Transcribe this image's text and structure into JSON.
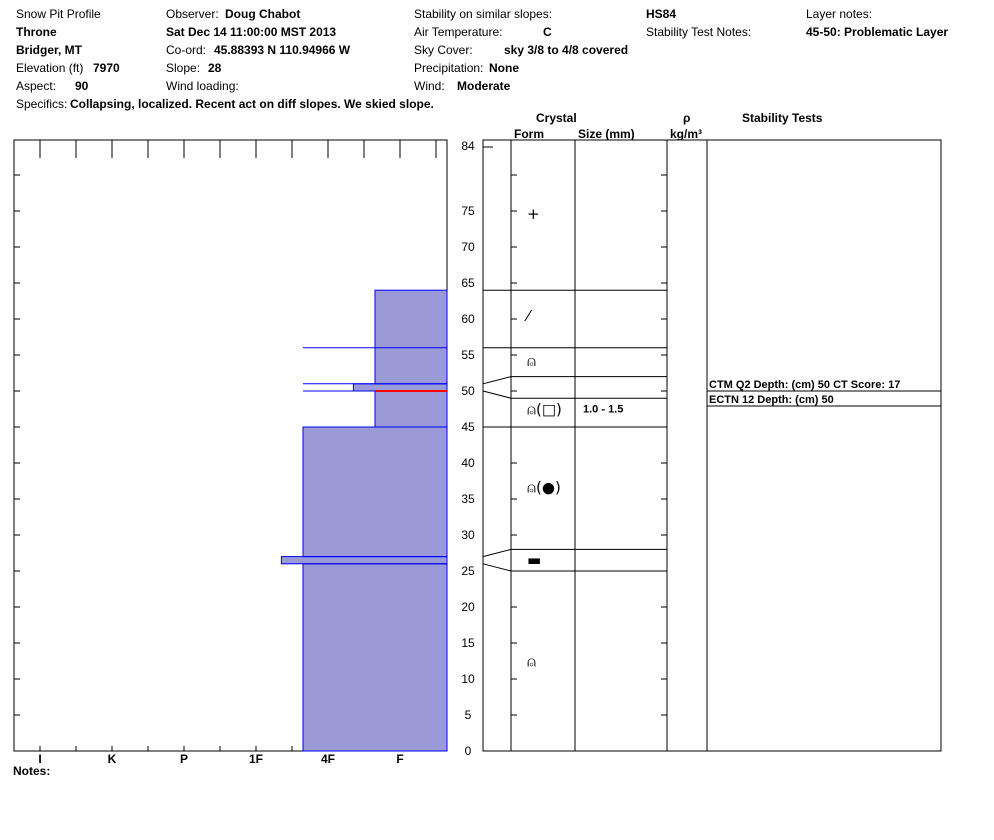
{
  "header": {
    "title": "Snow Pit Profile",
    "location": "Throne",
    "region": "Bridger, MT",
    "elevation_label": "Elevation (ft)",
    "elevation": "7970",
    "aspect_label": "Aspect:",
    "aspect": "90",
    "specifics_label": "Specifics:",
    "specifics": "Collapsing, localized. Recent act on diff slopes. We skied slope.",
    "observer_label": "Observer:",
    "observer": "Doug Chabot",
    "datetime": "Sat Dec 14 11:00:00 MST 2013",
    "coord_label": "Co-ord:",
    "coord": "45.88393 N 110.94966 W",
    "slope_label": "Slope:",
    "slope": "28",
    "wind_loading_label": "Wind loading:",
    "stability_label": "Stability on similar slopes:",
    "air_temp_label": "Air Temperature:",
    "air_temp": "C",
    "sky_label": "Sky Cover:",
    "sky": "sky 3/8 to 4/8 covered",
    "precip_label": "Precipitation:",
    "precip": "None",
    "wind_label": "Wind:",
    "wind": "Moderate",
    "hs": "HS84",
    "stability_notes_label": "Stability Test Notes:",
    "layer_notes_label": "Layer notes:",
    "layer_notes": "45-50: Problematic Layer"
  },
  "columns": {
    "crystal": "Crystal",
    "form": "Form",
    "size": "Size (mm)",
    "rho": "ρ",
    "density_unit": "kg/m³",
    "stability_tests": "Stability Tests"
  },
  "notes_label": "Notes:",
  "chart_data": {
    "type": "snow-profile",
    "hardness_scale": [
      "I",
      "K",
      "P",
      "1F",
      "4F",
      "F"
    ],
    "depth_axis": {
      "range": [
        0,
        84
      ],
      "ticks": [
        0,
        5,
        10,
        15,
        20,
        25,
        30,
        35,
        40,
        45,
        50,
        55,
        60,
        65,
        70,
        75,
        84
      ]
    },
    "hardness_profile": [
      {
        "from": 0,
        "to": 26,
        "hardness": 3
      },
      {
        "from": 26,
        "to": 27,
        "hardness": 2.7
      },
      {
        "from": 27,
        "to": 45,
        "hardness": 3
      },
      {
        "from": 45,
        "to": 50,
        "hardness": 4
      },
      {
        "from": 50,
        "to": 51,
        "hardness": 3.7
      },
      {
        "from": 51,
        "to": 64,
        "hardness": 4
      },
      {
        "from": 64,
        "to": 84,
        "hardness": 5
      }
    ],
    "layer_lines": [
      26,
      27,
      50,
      51,
      56
    ],
    "problem_layer": 50,
    "crystal_boundaries": [
      {
        "right": 25,
        "left": 26
      },
      {
        "right": 28,
        "left": 27
      },
      {
        "right": 45,
        "left": 45
      },
      {
        "right": 49,
        "left": 50
      },
      {
        "right": 52,
        "left": 51
      },
      {
        "right": 56,
        "left": 56
      },
      {
        "right": 64,
        "left": 64
      }
    ],
    "crystal_symbols": [
      {
        "depth": 12.4,
        "form": "faceted"
      },
      {
        "depth": 26.5,
        "form": "melt-freeze crust"
      },
      {
        "depth": 36.6,
        "form": "faceted (rounding)"
      },
      {
        "depth": 47.4,
        "form": "faceted (angular)"
      },
      {
        "depth": 54.2,
        "form": "faceted"
      },
      {
        "depth": 60.4,
        "form": "decomposed"
      },
      {
        "depth": 74.6,
        "form": "new snow"
      }
    ],
    "crystal_size": {
      "depth": 47.6,
      "label": "1.0 - 1.5"
    },
    "stability_tests": [
      {
        "label": "CTM Q2 Depth: (cm) 50 CT Score: 17",
        "depth": 50
      },
      {
        "label": "ECTN 12   Depth: (cm) 50",
        "depth": 50
      }
    ]
  }
}
